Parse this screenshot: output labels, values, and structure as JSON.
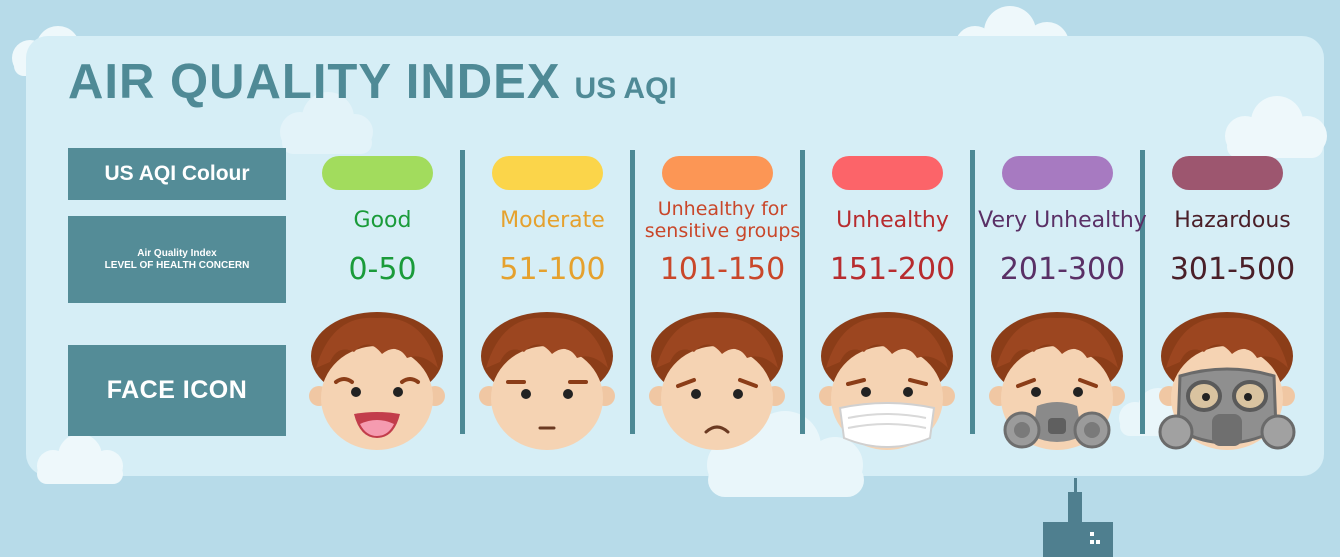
{
  "title": "AIR QUALITY INDEX",
  "subtitle": "US AQI",
  "row_labels": {
    "colour": "US AQI Colour",
    "concern_line1": "Air Quality Index",
    "concern_line2": "LEVEL OF HEALTH CONCERN",
    "face": "FACE ICON"
  },
  "categories": [
    {
      "level": "Good",
      "range": "0-50",
      "colour": "#a2dc5d",
      "text_colour": "#1a9b3a",
      "face": "smiling-face-icon"
    },
    {
      "level": "Moderate",
      "range": "51-100",
      "colour": "#fbd54a",
      "text_colour": "#e5a12e",
      "face": "neutral-face-icon"
    },
    {
      "level_line1": "Unhealthy for",
      "level_line2": "sensitive groups",
      "range": "101-150",
      "colour": "#fc9655",
      "text_colour": "#c9472a",
      "face": "sad-face-icon"
    },
    {
      "level": "Unhealthy",
      "range": "151-200",
      "colour": "#fc6469",
      "text_colour": "#b72c2f",
      "face": "face-mask-icon"
    },
    {
      "level": "Very Unhealthy",
      "range": "201-300",
      "colour": "#a77ac1",
      "text_colour": "#5a3066",
      "face": "respirator-icon"
    },
    {
      "level": "Hazardous",
      "range": "301-500",
      "colour": "#9d566f",
      "text_colour": "#4a1f28",
      "face": "gas-mask-icon"
    }
  ]
}
